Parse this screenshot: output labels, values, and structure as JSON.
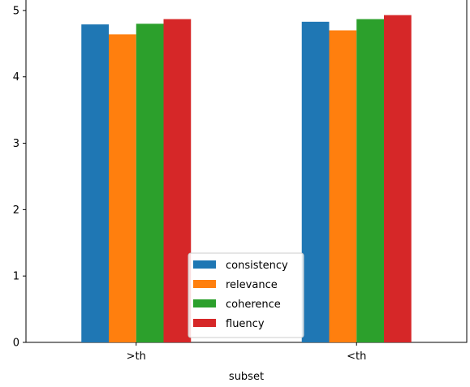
{
  "chart_data": {
    "type": "bar",
    "categories": [
      ">th",
      "<th"
    ],
    "series": [
      {
        "name": "consistency",
        "values": [
          4.79,
          4.83
        ],
        "color": "#1f77b4"
      },
      {
        "name": "relevance",
        "values": [
          4.64,
          4.7
        ],
        "color": "#ff7f0e"
      },
      {
        "name": "coherence",
        "values": [
          4.8,
          4.87
        ],
        "color": "#2ca02c"
      },
      {
        "name": "fluency",
        "values": [
          4.87,
          4.93
        ],
        "color": "#d62728"
      }
    ],
    "title": "",
    "xlabel": "subset",
    "ylabel": "",
    "ylim": [
      0,
      5.17
    ],
    "yticks": [
      0,
      1,
      2,
      3,
      4,
      5
    ],
    "grid": false,
    "legend_position": "bottom-center"
  }
}
